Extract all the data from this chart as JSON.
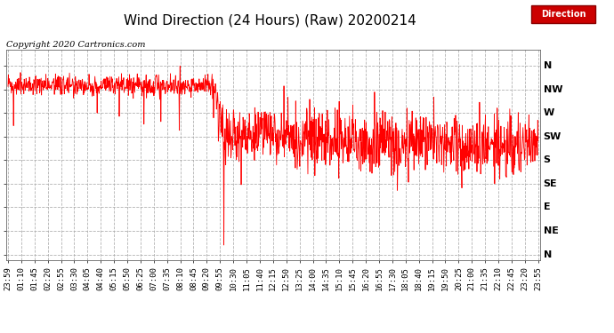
{
  "title": "Wind Direction (24 Hours) (Raw) 20200214",
  "copyright": "Copyright 2020 Cartronics.com",
  "legend_label": "Direction",
  "line_color": "#FF0000",
  "background_color": "#FFFFFF",
  "grid_color": "#AAAAAA",
  "ytick_labels": [
    "N",
    "NW",
    "W",
    "SW",
    "S",
    "SE",
    "E",
    "NE",
    "N"
  ],
  "ytick_values": [
    360,
    315,
    270,
    225,
    180,
    135,
    90,
    45,
    0
  ],
  "ylim": [
    -10,
    390
  ],
  "xtick_labels": [
    "23:59",
    "01:10",
    "01:45",
    "02:20",
    "02:55",
    "03:30",
    "04:05",
    "04:40",
    "05:15",
    "05:50",
    "06:25",
    "07:00",
    "07:35",
    "08:10",
    "08:45",
    "09:20",
    "09:55",
    "10:30",
    "11:05",
    "11:40",
    "12:15",
    "12:50",
    "13:25",
    "14:00",
    "14:35",
    "15:10",
    "15:45",
    "16:20",
    "16:55",
    "17:30",
    "18:05",
    "18:40",
    "19:15",
    "19:50",
    "20:25",
    "21:00",
    "21:35",
    "22:10",
    "22:45",
    "23:20",
    "23:55"
  ],
  "title_fontsize": 11,
  "copyright_fontsize": 7,
  "axis_fontsize": 6.5,
  "ytick_fontsize": 8
}
